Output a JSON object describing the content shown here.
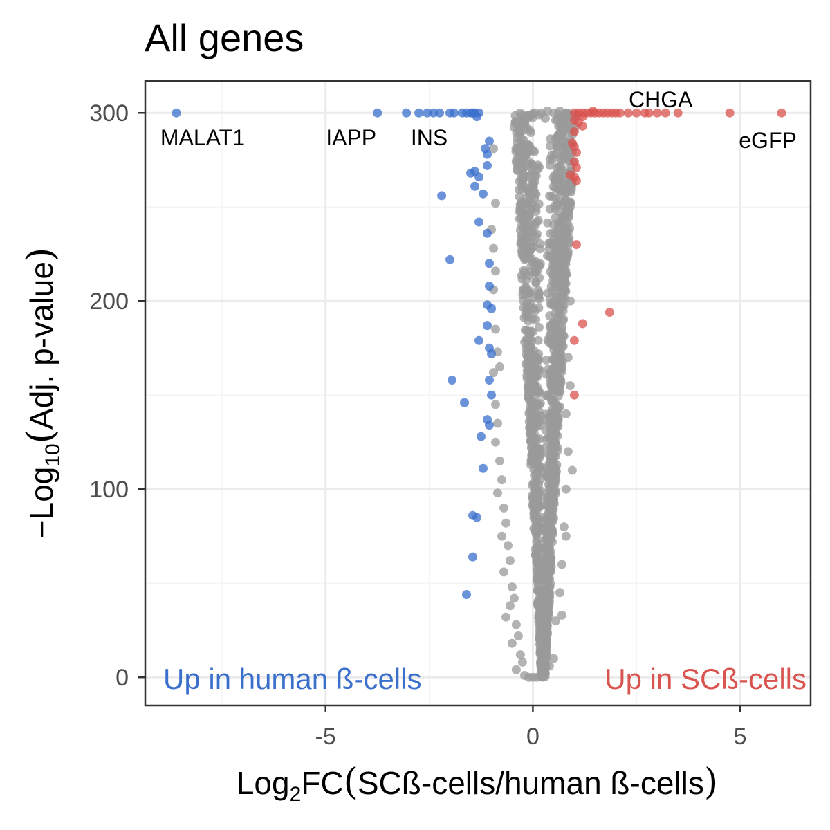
{
  "chart_data": {
    "type": "scatter",
    "title": "All genes",
    "xlabel": {
      "prefix": "Log",
      "sub": "2",
      "suffix": "FC",
      "paren": "SCß-cells/human ß-cells"
    },
    "ylabel": {
      "prefix": "−Log",
      "sub": "10",
      "paren": "Adj. p-value"
    },
    "xlim": [
      -9.35,
      6.7
    ],
    "ylim": [
      -15,
      317
    ],
    "x_ticks": [
      -5,
      0,
      5
    ],
    "y_ticks": [
      0,
      100,
      200,
      300
    ],
    "grid": true,
    "colors": {
      "up_human": "#3a6fcc",
      "up_sc": "#d9534f",
      "not_significant": "#999999",
      "panel_border": "#333333",
      "grid_major": "#ebebeb",
      "grid_minor": "#f4f4f4"
    },
    "corner_labels": {
      "left": "Up in human ß-cells",
      "right": "Up in SCß-cells"
    },
    "annotations": [
      {
        "text": "MALAT1",
        "x": -8.6,
        "y": 300
      },
      {
        "text": "IAPP",
        "x": -3.8,
        "y": 300
      },
      {
        "text": "INS",
        "x": -2.5,
        "y": 300
      },
      {
        "text": "CHGA",
        "x": 3.5,
        "y": 300
      },
      {
        "text": "eGFP",
        "x": 6.0,
        "y": 300
      }
    ],
    "series": [
      {
        "name": "Up in human ß-cells",
        "color_key": "up_human",
        "points": [
          [
            -8.6,
            300
          ],
          [
            -3.75,
            300
          ],
          [
            -3.05,
            300
          ],
          [
            -2.75,
            300
          ],
          [
            -2.55,
            300
          ],
          [
            -2.4,
            300
          ],
          [
            -2.25,
            300
          ],
          [
            -2.0,
            300
          ],
          [
            -1.9,
            300
          ],
          [
            -1.7,
            300
          ],
          [
            -1.6,
            300
          ],
          [
            -1.5,
            300
          ],
          [
            -1.45,
            300
          ],
          [
            -1.4,
            300
          ],
          [
            -1.3,
            300
          ],
          [
            -1.35,
            298
          ],
          [
            -1.05,
            285
          ],
          [
            -1.15,
            281
          ],
          [
            -1.1,
            278
          ],
          [
            -1.1,
            272
          ],
          [
            -1.4,
            269
          ],
          [
            -1.5,
            268
          ],
          [
            -1.3,
            266
          ],
          [
            -1.4,
            261
          ],
          [
            -1.2,
            257
          ],
          [
            -2.2,
            256
          ],
          [
            -1.3,
            242
          ],
          [
            -1.1,
            236
          ],
          [
            -2.0,
            222
          ],
          [
            -1.05,
            220
          ],
          [
            -1.05,
            208
          ],
          [
            -1.1,
            198
          ],
          [
            -1.0,
            196
          ],
          [
            -1.1,
            187
          ],
          [
            -1.3,
            179
          ],
          [
            -1.05,
            175
          ],
          [
            -1.0,
            172
          ],
          [
            -1.95,
            158
          ],
          [
            -1.05,
            158
          ],
          [
            -1.0,
            150
          ],
          [
            -1.65,
            146
          ],
          [
            -1.1,
            137
          ],
          [
            -1.05,
            134
          ],
          [
            -1.25,
            128
          ],
          [
            -1.2,
            111
          ],
          [
            -1.45,
            86
          ],
          [
            -1.35,
            85
          ],
          [
            -1.45,
            64
          ],
          [
            -1.6,
            44
          ]
        ]
      },
      {
        "name": "Up in SCß-cells",
        "color_key": "up_sc",
        "points": [
          [
            1.0,
            300
          ],
          [
            1.1,
            300
          ],
          [
            1.2,
            300
          ],
          [
            1.3,
            300
          ],
          [
            1.4,
            300
          ],
          [
            1.5,
            300
          ],
          [
            1.6,
            300
          ],
          [
            1.7,
            300
          ],
          [
            1.8,
            300
          ],
          [
            1.9,
            300
          ],
          [
            2.0,
            300
          ],
          [
            2.1,
            300
          ],
          [
            2.3,
            300
          ],
          [
            2.5,
            300
          ],
          [
            2.7,
            300
          ],
          [
            2.8,
            300
          ],
          [
            3.0,
            300
          ],
          [
            3.2,
            300
          ],
          [
            3.5,
            300
          ],
          [
            4.75,
            300
          ],
          [
            6.0,
            300
          ],
          [
            1.45,
            301
          ],
          [
            1.2,
            298
          ],
          [
            1.0,
            296
          ],
          [
            1.1,
            295
          ],
          [
            1.2,
            293
          ],
          [
            1.0,
            290
          ],
          [
            0.95,
            284
          ],
          [
            1.0,
            282
          ],
          [
            1.05,
            279
          ],
          [
            1.0,
            274
          ],
          [
            1.05,
            271
          ],
          [
            0.9,
            267
          ],
          [
            1.0,
            266
          ],
          [
            1.05,
            264
          ],
          [
            1.05,
            230
          ],
          [
            1.85,
            194
          ],
          [
            1.2,
            188
          ],
          [
            1.0,
            179
          ],
          [
            1.0,
            150
          ]
        ]
      },
      {
        "name": "Not significant",
        "color_key": "not_significant",
        "points": [
          [
            0.05,
            300
          ],
          [
            0.2,
            300
          ],
          [
            0.35,
            301
          ],
          [
            0.5,
            300
          ],
          [
            0.65,
            301
          ],
          [
            0.8,
            300
          ],
          [
            0.15,
            299
          ],
          [
            0.3,
            297
          ],
          [
            0.55,
            296
          ],
          [
            0.7,
            298
          ],
          [
            -0.95,
            281
          ],
          [
            -0.9,
            252
          ],
          [
            -1.0,
            238
          ],
          [
            -0.95,
            228
          ],
          [
            -0.9,
            216
          ],
          [
            -0.95,
            206
          ],
          [
            -0.9,
            185
          ],
          [
            -0.85,
            173
          ],
          [
            -0.8,
            165
          ],
          [
            -0.95,
            162
          ],
          [
            -0.9,
            145
          ],
          [
            -0.85,
            135
          ],
          [
            -0.9,
            125
          ],
          [
            -0.8,
            115
          ],
          [
            -0.75,
            105
          ],
          [
            -0.85,
            98
          ],
          [
            -0.7,
            90
          ],
          [
            -0.65,
            82
          ],
          [
            -0.75,
            75
          ],
          [
            -0.6,
            70
          ],
          [
            -0.55,
            62
          ],
          [
            -0.7,
            56
          ],
          [
            -0.5,
            48
          ],
          [
            -0.45,
            42
          ],
          [
            -0.55,
            38
          ],
          [
            -0.65,
            32
          ],
          [
            -0.4,
            28
          ],
          [
            -0.35,
            22
          ],
          [
            -0.5,
            18
          ],
          [
            -0.3,
            12
          ],
          [
            -0.25,
            8
          ],
          [
            -0.4,
            4
          ],
          [
            -0.2,
            1
          ],
          [
            -0.1,
            0
          ],
          [
            0.0,
            0
          ],
          [
            0.1,
            0
          ],
          [
            0.2,
            1
          ],
          [
            0.3,
            2
          ],
          [
            0.4,
            6
          ],
          [
            0.5,
            10
          ],
          [
            0.55,
            30
          ],
          [
            0.65,
            45
          ],
          [
            0.7,
            60
          ],
          [
            0.75,
            80
          ],
          [
            0.8,
            100
          ],
          [
            0.85,
            120
          ],
          [
            0.8,
            140
          ],
          [
            0.85,
            170
          ],
          [
            0.9,
            200
          ],
          [
            0.85,
            230
          ],
          [
            0.9,
            250
          ],
          [
            0.95,
            262
          ],
          [
            0.7,
            33
          ],
          [
            0.95,
            110
          ],
          [
            0.8,
            75
          ],
          [
            0.9,
            155
          ]
        ]
      }
    ],
    "density_note": null
  }
}
